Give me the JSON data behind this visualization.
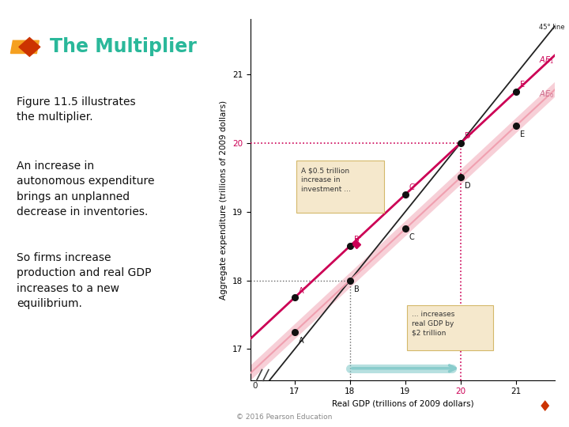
{
  "title": "The Multiplier",
  "para1": "Figure 11.5 illustrates\nthe multiplier.",
  "para2": "An increase in\nautonomous expenditure\nbrings an unplanned\ndecrease in inventories.",
  "para3": "So firms increase\nproduction and real GDP\nincreases to a new\nequilibrium.",
  "xlabel": "Real GDP (trillions of 2009 dollars)",
  "ylabel": "Aggregate expenditure (trillions of 2009 dollars)",
  "xlim": [
    16.2,
    21.7
  ],
  "ylim": [
    16.55,
    21.8
  ],
  "bg_color": "#ffffff",
  "line_45_color": "#222222",
  "line_AE0_color": "#f0a0b0",
  "line_AE1_color": "#cc0055",
  "dot_color": "#111111",
  "hline_color": "#cc0055",
  "annotation_box_color": "#f5e8cc",
  "annotation_box_edge": "#d4b86a",
  "arrow_color": "#88cccc",
  "title_color": "#2ab89a",
  "logo_orange": "#f5a020",
  "logo_red": "#cc3300",
  "copyright_text": "© 2016 Pearson Education",
  "AE0_slope": 0.75,
  "AE0_intercept": 4.5,
  "AE1_slope": 0.75,
  "AE1_intercept": 5.0,
  "eq0_x": 18.0,
  "eq1_x": 20.0
}
